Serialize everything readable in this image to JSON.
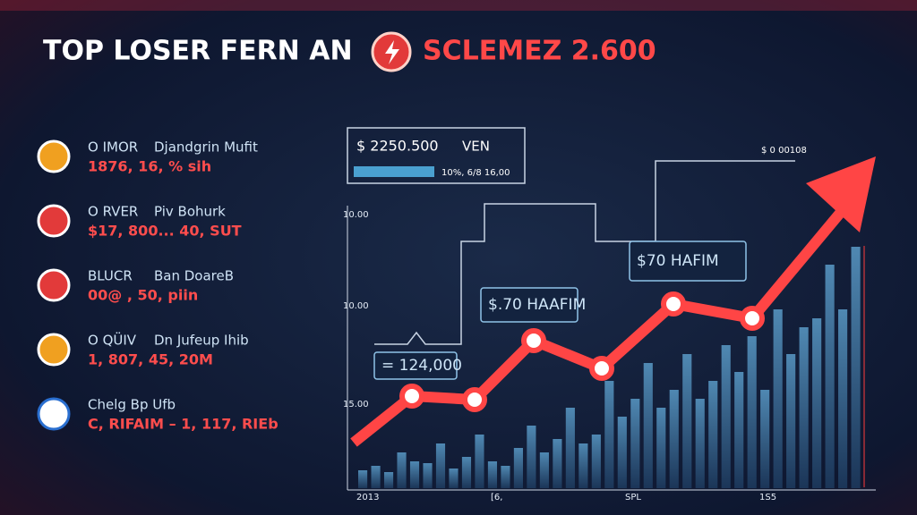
{
  "header": {
    "title_left": "TOP LOSER FERN AN",
    "title_right": "SCLEMEZ 2.600"
  },
  "list": [
    {
      "ticker": "O IMOR",
      "name": "Djandgrin Mufit",
      "stats": "1876, 16, % sih"
    },
    {
      "ticker": "O RVER",
      "name": "Piv Bohurk",
      "stats": "$17, 800... 40, SUT"
    },
    {
      "ticker": "BLUCR",
      "name": "Ban DoareB",
      "stats": "00@ , 50, piin"
    },
    {
      "ticker": "O QÜIV",
      "name": "Dn Jufeup Ihib",
      "stats": "1, 807, 45, 20M"
    },
    {
      "ticker": "Chelg Bp Ufb",
      "name": "",
      "stats": "C, RIFAIM – 1, 117, RIEb"
    }
  ],
  "panel": {
    "price": "$ 2250.500",
    "unit": "VEN",
    "sub": "10%, 6/8 16,00",
    "corner": "$ 0 00108",
    "axis": [
      "10.00",
      "10.00",
      "15.00"
    ],
    "dates": [
      "2013",
      "[6,",
      "SPL",
      "1S5"
    ],
    "callouts": [
      "= 124,000",
      "$.70 HAAFIM",
      "$70 HAFIM"
    ]
  }
}
